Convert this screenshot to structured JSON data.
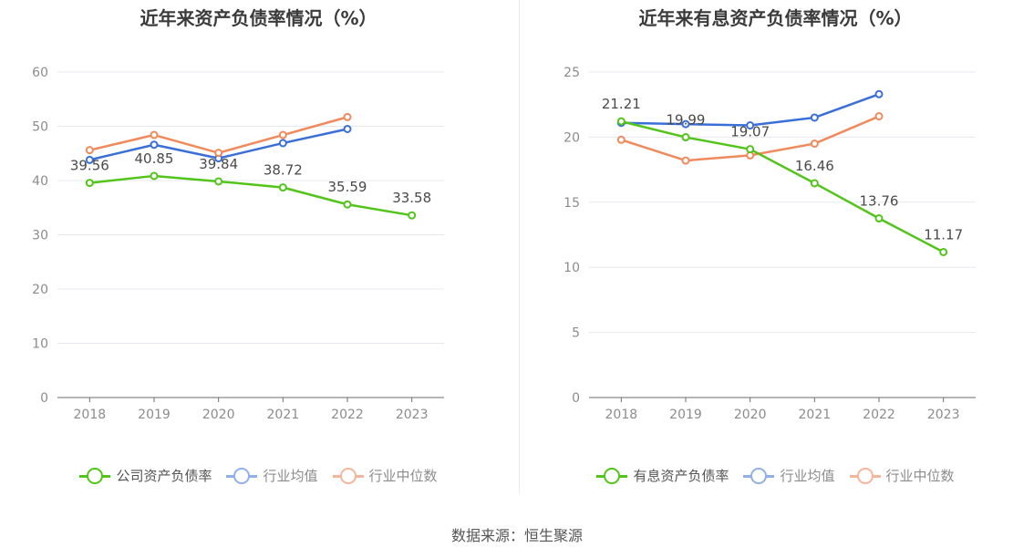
{
  "chart_data": [
    {
      "type": "line",
      "title": "近年来资产负债率情况（%）",
      "x": [
        "2018",
        "2019",
        "2020",
        "2021",
        "2022",
        "2023"
      ],
      "ylim": [
        0,
        60
      ],
      "yticks": [
        0,
        10,
        20,
        30,
        40,
        50,
        60
      ],
      "grid": true,
      "legend_position": "bottom",
      "series": [
        {
          "name": "公司资产负债率",
          "color": "#52c41a",
          "values": [
            39.56,
            40.85,
            39.84,
            38.72,
            35.59,
            33.58
          ],
          "labels": [
            "39.56",
            "40.85",
            "39.84",
            "38.72",
            "35.59",
            "33.58"
          ]
        },
        {
          "name": "行业均值",
          "color": "#3a6fd8",
          "values": [
            43.8,
            46.6,
            44.1,
            46.9,
            49.5,
            null
          ]
        },
        {
          "name": "行业中位数",
          "color": "#f08a5d",
          "values": [
            45.6,
            48.4,
            45.1,
            48.4,
            51.7,
            null
          ]
        }
      ]
    },
    {
      "type": "line",
      "title": "近年来有息资产负债率情况（%）",
      "x": [
        "2018",
        "2019",
        "2020",
        "2021",
        "2022",
        "2023"
      ],
      "ylim": [
        0,
        25
      ],
      "yticks": [
        0,
        5,
        10,
        15,
        20,
        25
      ],
      "grid": true,
      "legend_position": "bottom",
      "series": [
        {
          "name": "有息资产负债率",
          "color": "#52c41a",
          "values": [
            21.21,
            19.99,
            19.07,
            16.46,
            13.76,
            11.17
          ],
          "labels": [
            "21.21",
            "19.99",
            "19.07",
            "16.46",
            "13.76",
            "11.17"
          ]
        },
        {
          "name": "行业均值",
          "color": "#3a6fd8",
          "values": [
            21.1,
            21.0,
            20.9,
            21.5,
            23.3,
            null
          ]
        },
        {
          "name": "行业中位数",
          "color": "#f08a5d",
          "values": [
            19.8,
            18.2,
            18.6,
            19.5,
            21.6,
            null
          ]
        }
      ]
    }
  ],
  "source": "数据来源：恒生聚源"
}
